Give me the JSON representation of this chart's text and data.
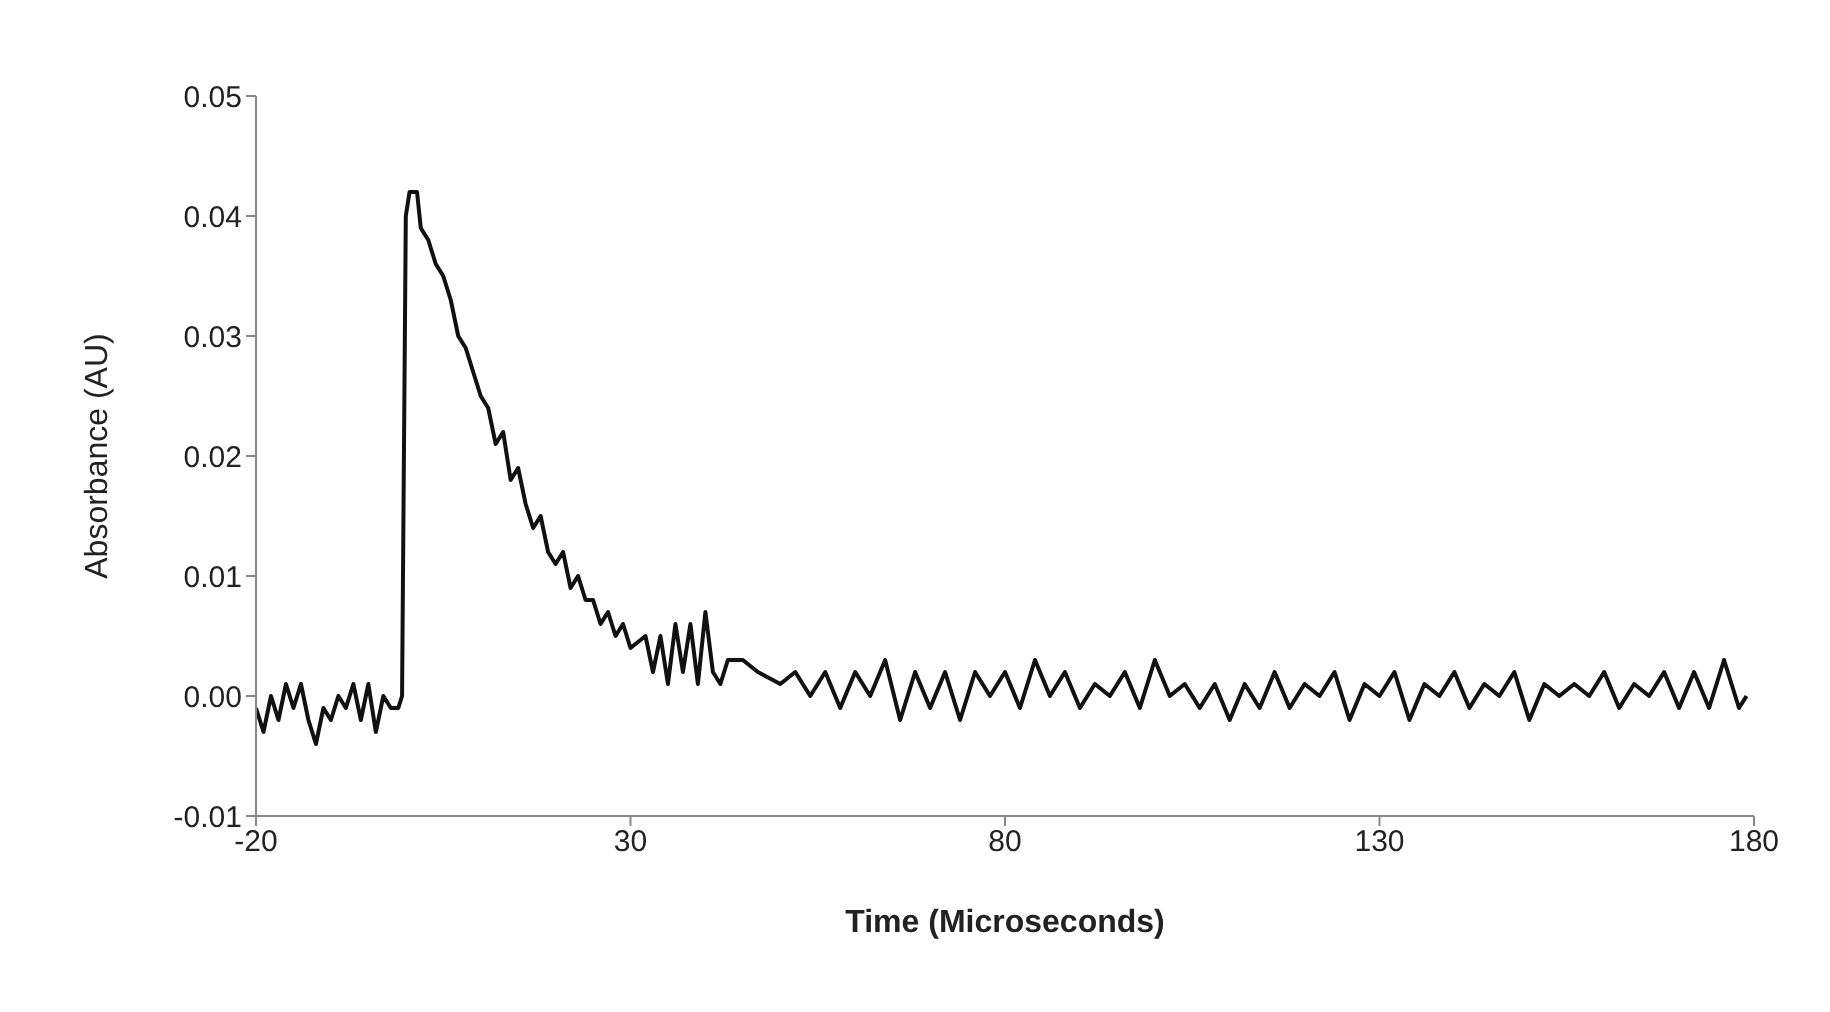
{
  "chart_data": {
    "type": "line",
    "xlabel": "Time (Microseconds)",
    "ylabel": "Absorbance (AU)",
    "xlim": [
      -20,
      180
    ],
    "xticks": [
      -20,
      30,
      80,
      130,
      180
    ],
    "ylim": [
      -0.01,
      0.05
    ],
    "yticks": [
      -0.01,
      {
        "value": 0,
        "label": "0.00"
      },
      0.01,
      0.02,
      0.03,
      0.04,
      0.05
    ],
    "grid": false,
    "legend": false,
    "marker": "none",
    "line_style": "solid",
    "series": [
      {
        "color": "#111111",
        "x": [
          -20,
          -19,
          -18,
          -17,
          -16,
          -15,
          -14,
          -13,
          -12,
          -11,
          -10,
          -9,
          -8,
          -7,
          -6,
          -5,
          -4,
          -3,
          -2,
          -1,
          -0.5,
          0,
          0.5,
          1.5,
          2,
          3,
          4,
          5,
          6,
          7,
          8,
          9,
          10,
          11,
          12,
          13,
          14,
          15,
          16,
          17,
          18,
          19,
          20,
          21,
          22,
          23,
          24,
          25,
          26,
          27,
          28,
          29,
          30,
          32,
          33,
          34,
          35,
          36,
          37,
          38,
          39,
          40,
          41,
          42,
          43,
          45,
          47,
          50,
          52,
          54,
          56,
          58,
          60,
          62,
          64,
          66,
          68,
          70,
          72,
          74,
          76,
          78,
          80,
          82,
          84,
          86,
          88,
          90,
          92,
          94,
          96,
          98,
          100,
          102,
          104,
          106,
          108,
          110,
          112,
          114,
          116,
          118,
          120,
          122,
          124,
          126,
          128,
          130,
          132,
          134,
          136,
          138,
          140,
          142,
          144,
          146,
          148,
          150,
          152,
          154,
          156,
          158,
          160,
          162,
          164,
          166,
          168,
          170,
          172,
          174,
          176,
          178,
          179
        ],
        "values": [
          -0.001,
          -0.003,
          0.0,
          -0.002,
          0.001,
          -0.001,
          0.001,
          -0.002,
          -0.004,
          -0.001,
          -0.002,
          0.0,
          -0.001,
          0.001,
          -0.002,
          0.001,
          -0.003,
          0.0,
          -0.001,
          -0.001,
          0.0,
          0.04,
          0.042,
          0.042,
          0.039,
          0.038,
          0.036,
          0.035,
          0.033,
          0.03,
          0.029,
          0.027,
          0.025,
          0.024,
          0.021,
          0.022,
          0.018,
          0.019,
          0.016,
          0.014,
          0.015,
          0.012,
          0.011,
          0.012,
          0.009,
          0.01,
          0.008,
          0.008,
          0.006,
          0.007,
          0.005,
          0.006,
          0.004,
          0.005,
          0.002,
          0.005,
          0.001,
          0.006,
          0.002,
          0.006,
          0.001,
          0.007,
          0.002,
          0.001,
          0.003,
          0.003,
          0.002,
          0.001,
          0.002,
          0.0,
          0.002,
          -0.001,
          0.002,
          0.0,
          0.003,
          -0.002,
          0.002,
          -0.001,
          0.002,
          -0.002,
          0.002,
          0.0,
          0.002,
          -0.001,
          0.003,
          0.0,
          0.002,
          -0.001,
          0.001,
          0.0,
          0.002,
          -0.001,
          0.003,
          0.0,
          0.001,
          -0.001,
          0.001,
          -0.002,
          0.001,
          -0.001,
          0.002,
          -0.001,
          0.001,
          0.0,
          0.002,
          -0.002,
          0.001,
          0.0,
          0.002,
          -0.002,
          0.001,
          0.0,
          0.002,
          -0.001,
          0.001,
          0.0,
          0.002,
          -0.002,
          0.001,
          0.0,
          0.001,
          0.0,
          0.002,
          -0.001,
          0.001,
          0.0,
          0.002,
          -0.001,
          0.002,
          -0.001,
          0.003,
          -0.001,
          0.0
        ]
      }
    ]
  }
}
